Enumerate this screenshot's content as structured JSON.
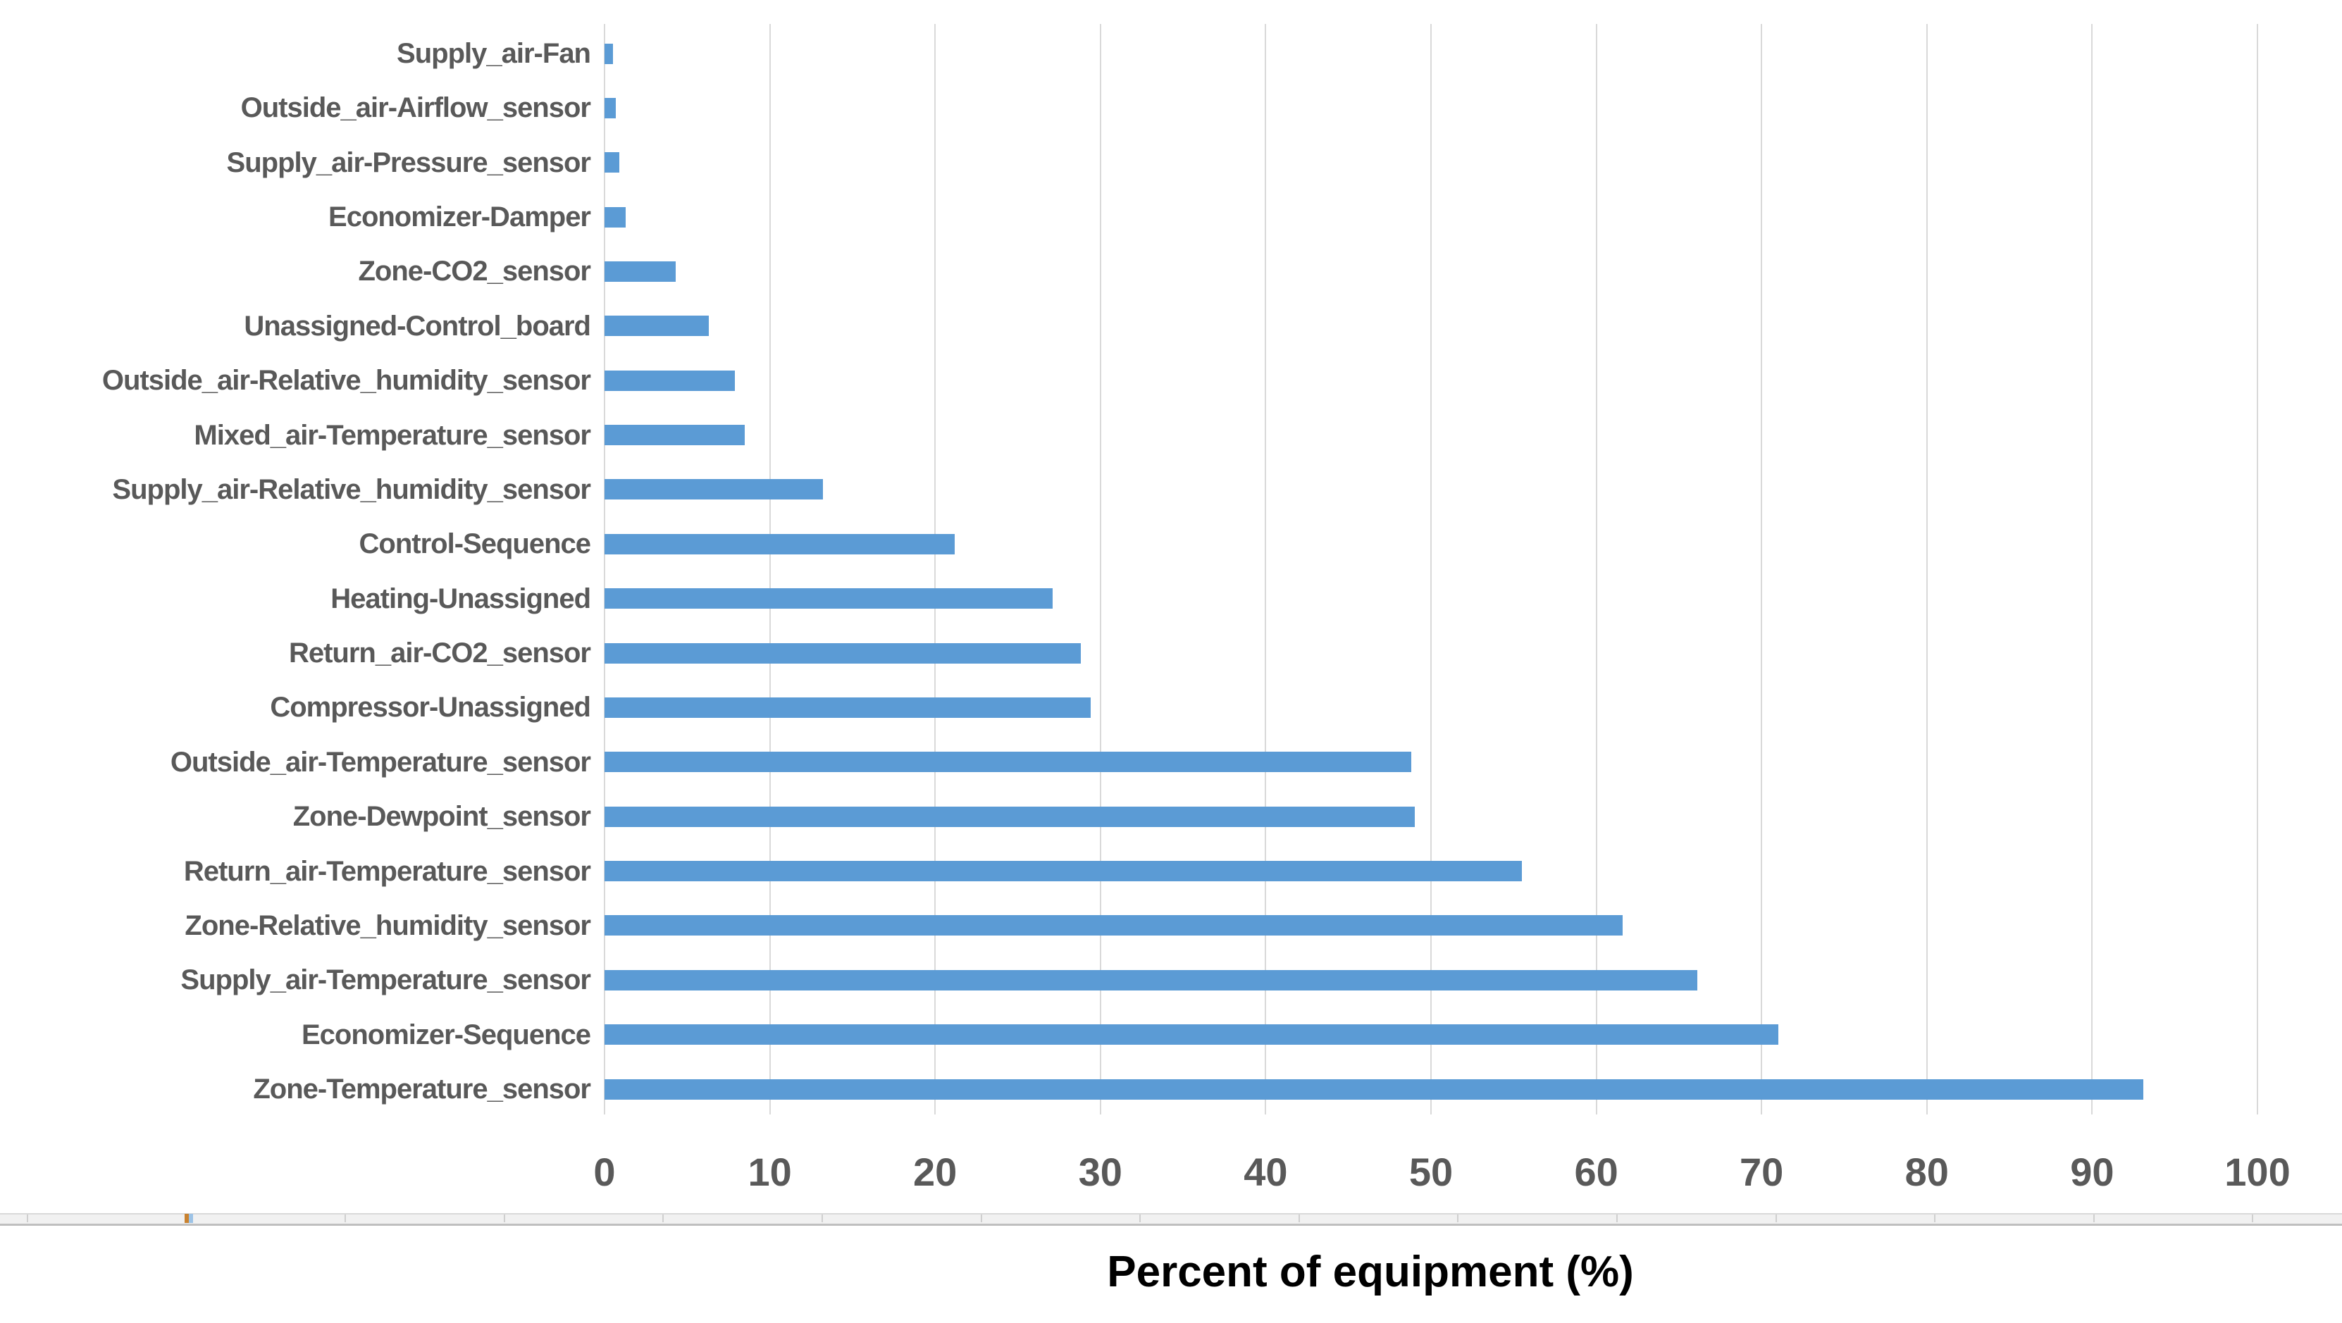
{
  "chart_data": {
    "type": "bar",
    "orientation": "horizontal",
    "title": "",
    "xlabel": "Percent of equipment (%)",
    "ylabel": "",
    "xlim": [
      0,
      100
    ],
    "x_ticks": [
      0,
      10,
      20,
      30,
      40,
      50,
      60,
      70,
      80,
      90,
      100
    ],
    "grid": true,
    "legend_position": "none",
    "bar_color": "#5B9BD5",
    "label_color": "#595959",
    "gridline_color": "#D9D9D9",
    "categories": [
      "Supply_air-Fan",
      "Outside_air-Airflow_sensor",
      "Supply_air-Pressure_sensor",
      "Economizer-Damper",
      "Zone-CO2_sensor",
      "Unassigned-Control_board",
      "Outside_air-Relative_humidity_sensor",
      "Mixed_air-Temperature_sensor",
      "Supply_air-Relative_humidity_sensor",
      "Control-Sequence",
      "Heating-Unassigned",
      "Return_air-CO2_sensor",
      "Compressor-Unassigned",
      "Outside_air-Temperature_sensor",
      "Zone-Dewpoint_sensor",
      "Return_air-Temperature_sensor",
      "Zone-Relative_humidity_sensor",
      "Supply_air-Temperature_sensor",
      "Economizer-Sequence",
      "Zone-Temperature_sensor"
    ],
    "values": [
      0.5,
      0.7,
      0.9,
      1.3,
      4.3,
      6.3,
      7.9,
      8.5,
      13.2,
      21.2,
      27.1,
      28.8,
      29.4,
      48.8,
      49.0,
      55.5,
      61.6,
      66.1,
      71.0,
      93.1
    ]
  }
}
